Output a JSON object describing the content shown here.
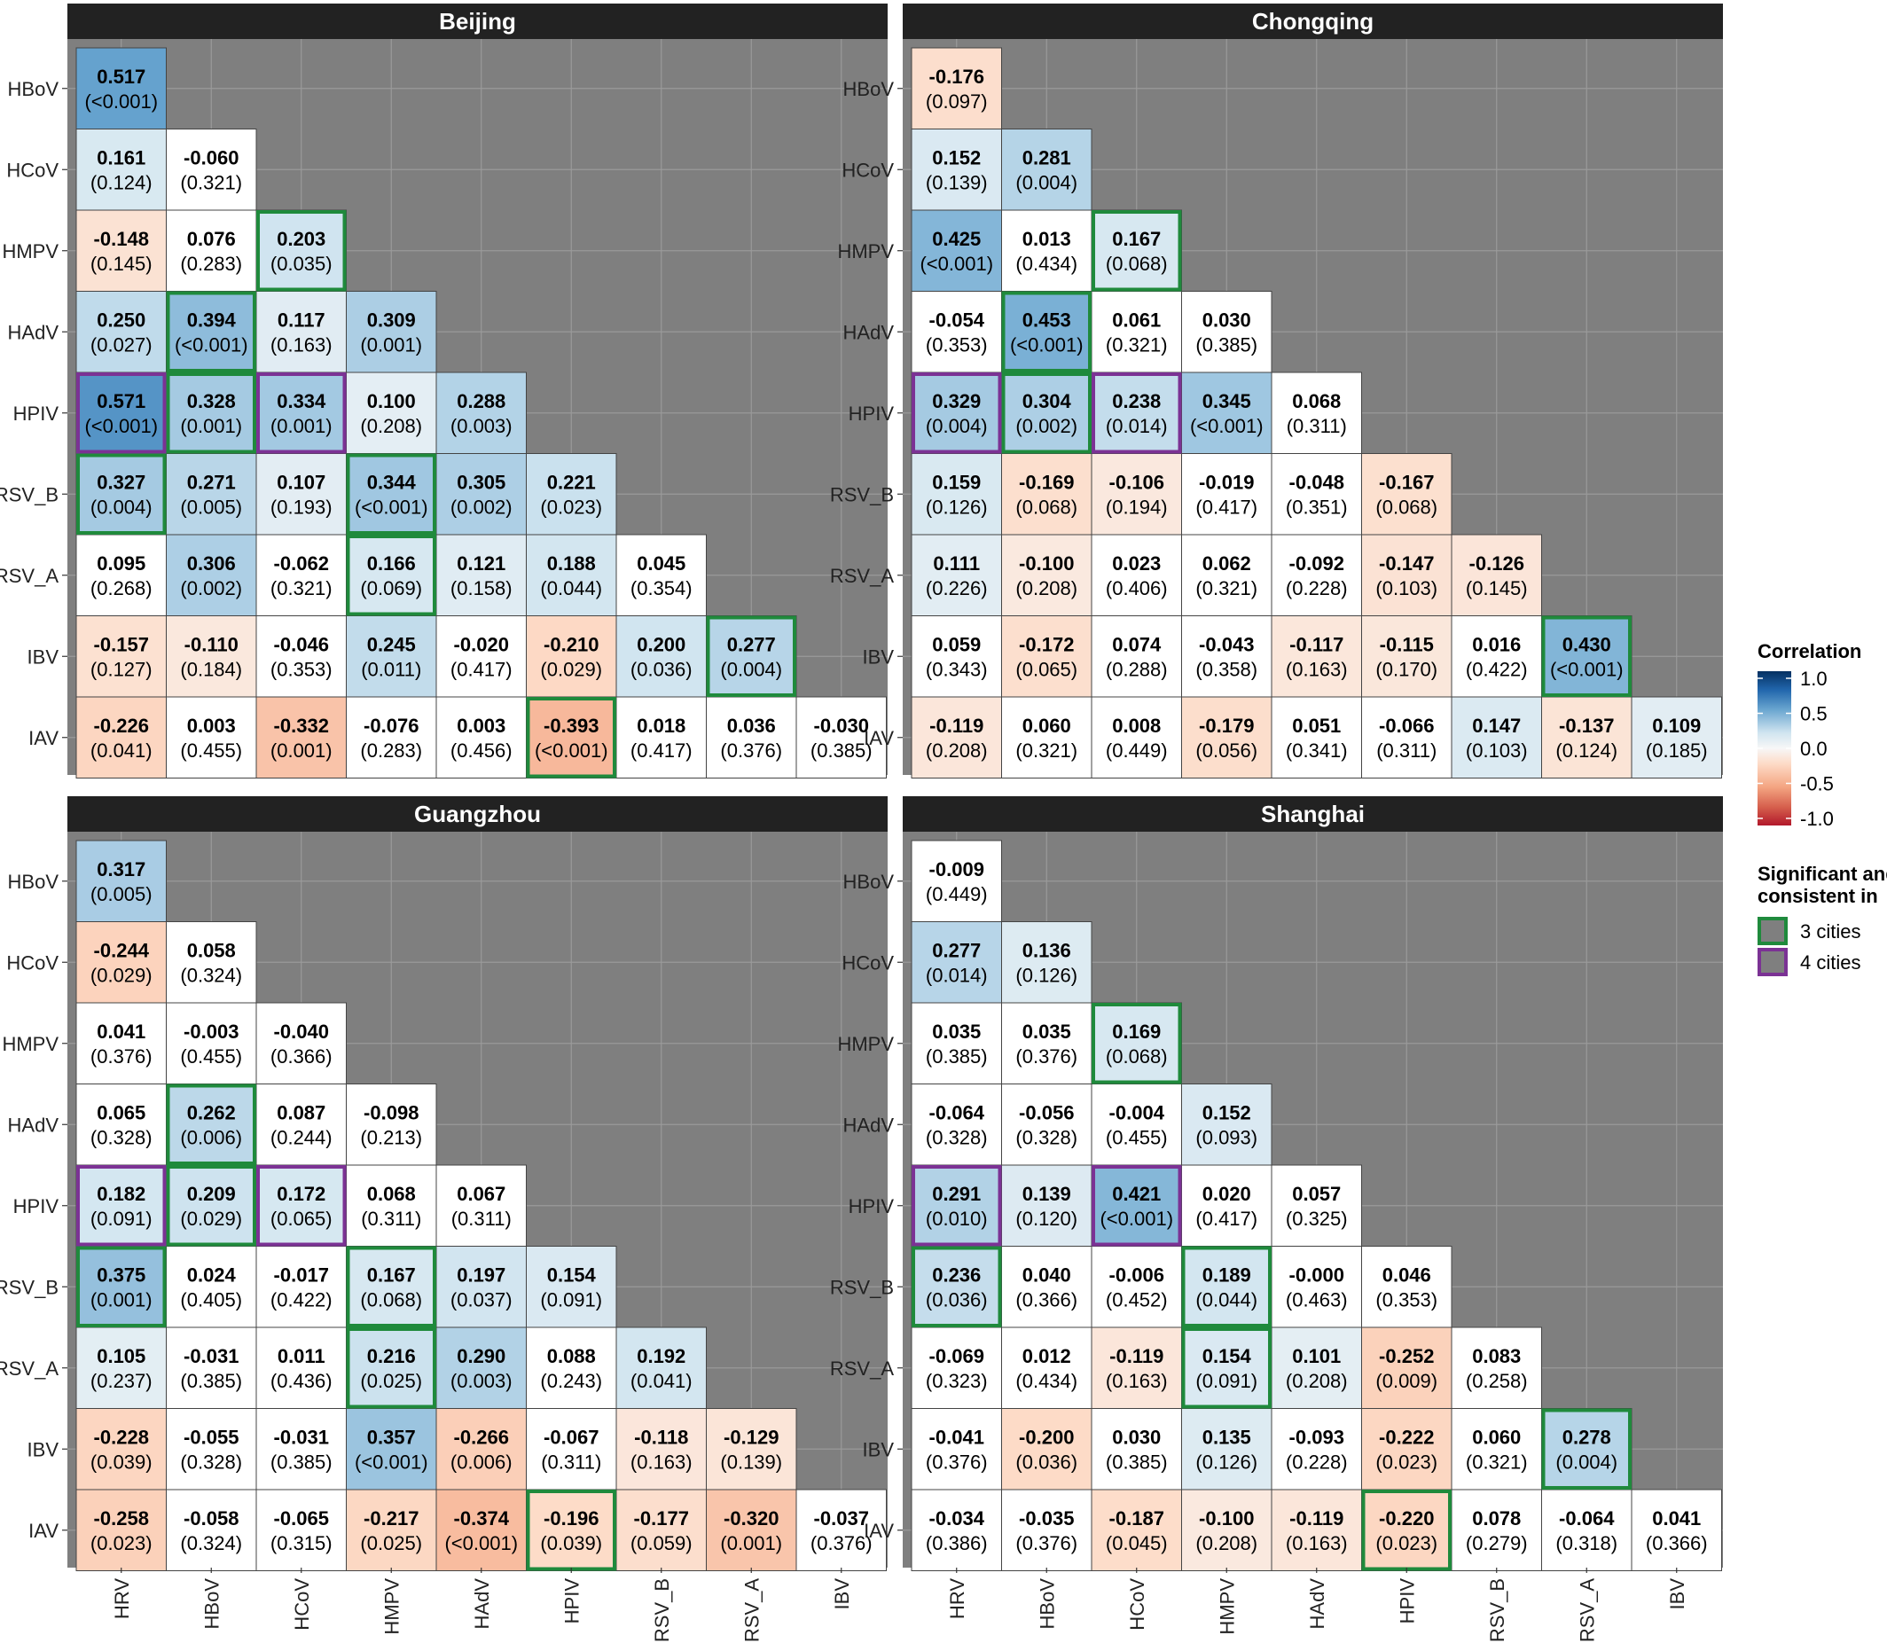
{
  "chart_data": {
    "type": "heatmap",
    "variables_x": [
      "HRV",
      "HBoV",
      "HCoV",
      "HMPV",
      "HAdV",
      "HPIV",
      "RSV_B",
      "RSV_A",
      "IBV"
    ],
    "variables_y": [
      "HBoV",
      "HCoV",
      "HMPV",
      "HAdV",
      "HPIV",
      "RSV_B",
      "RSV_A",
      "IBV",
      "IAV"
    ],
    "color_scale": {
      "min": -1.0,
      "max": 1.0,
      "low_color": "#b2182b",
      "mid_color": "#f7f7f7",
      "high_color": "#2166ac"
    },
    "panels": [
      {
        "city": "Beijing",
        "values": [
          [
            0.517
          ],
          [
            0.161,
            -0.06
          ],
          [
            -0.148,
            0.076,
            0.203
          ],
          [
            0.25,
            0.394,
            0.117,
            0.309
          ],
          [
            0.571,
            0.328,
            0.334,
            0.1,
            0.288
          ],
          [
            0.327,
            0.271,
            0.107,
            0.344,
            0.305,
            0.221
          ],
          [
            0.095,
            0.306,
            -0.062,
            0.166,
            0.121,
            0.188,
            0.045
          ],
          [
            -0.157,
            -0.11,
            -0.046,
            0.245,
            -0.02,
            -0.21,
            0.2,
            0.277
          ],
          [
            -0.226,
            0.003,
            -0.332,
            -0.076,
            0.003,
            -0.393,
            0.018,
            0.036,
            -0.03
          ]
        ],
        "values_text": [
          [
            "0.517"
          ],
          [
            "0.161",
            "-0.060"
          ],
          [
            "-0.148",
            "0.076",
            "0.203"
          ],
          [
            "0.250",
            "0.394",
            "0.117",
            "0.309"
          ],
          [
            "0.571",
            "0.328",
            "0.334",
            "0.100",
            "0.288"
          ],
          [
            "0.327",
            "0.271",
            "0.107",
            "0.344",
            "0.305",
            "0.221"
          ],
          [
            "0.095",
            "0.306",
            "-0.062",
            "0.166",
            "0.121",
            "0.188",
            "0.045"
          ],
          [
            "-0.157",
            "-0.110",
            "-0.046",
            "0.245",
            "-0.020",
            "-0.210",
            "0.200",
            "0.277"
          ],
          [
            "-0.226",
            "0.003",
            "-0.332",
            "-0.076",
            "0.003",
            "-0.393",
            "0.018",
            "0.036",
            "-0.030"
          ]
        ],
        "p_values": [
          [
            "(<0.001)"
          ],
          [
            "(0.124)",
            "(0.321)"
          ],
          [
            "(0.145)",
            "(0.283)",
            "(0.035)"
          ],
          [
            "(0.027)",
            "(<0.001)",
            "(0.163)",
            "(0.001)"
          ],
          [
            "(<0.001)",
            "(0.001)",
            "(0.001)",
            "(0.208)",
            "(0.003)"
          ],
          [
            "(0.004)",
            "(0.005)",
            "(0.193)",
            "(<0.001)",
            "(0.002)",
            "(0.023)"
          ],
          [
            "(0.268)",
            "(0.002)",
            "(0.321)",
            "(0.069)",
            "(0.158)",
            "(0.044)",
            "(0.354)"
          ],
          [
            "(0.127)",
            "(0.184)",
            "(0.353)",
            "(0.011)",
            "(0.417)",
            "(0.029)",
            "(0.036)",
            "(0.004)"
          ],
          [
            "(0.041)",
            "(0.455)",
            "(0.001)",
            "(0.283)",
            "(0.456)",
            "(<0.001)",
            "(0.417)",
            "(0.376)",
            "(0.385)"
          ]
        ],
        "highlights": [
          {
            "row": 2,
            "col": 2,
            "cities": 3
          },
          {
            "row": 3,
            "col": 1,
            "cities": 3
          },
          {
            "row": 4,
            "col": 0,
            "cities": 4
          },
          {
            "row": 4,
            "col": 1,
            "cities": 3
          },
          {
            "row": 4,
            "col": 2,
            "cities": 4
          },
          {
            "row": 5,
            "col": 0,
            "cities": 3
          },
          {
            "row": 5,
            "col": 3,
            "cities": 3
          },
          {
            "row": 6,
            "col": 3,
            "cities": 3
          },
          {
            "row": 7,
            "col": 7,
            "cities": 3
          },
          {
            "row": 8,
            "col": 5,
            "cities": 3
          }
        ]
      },
      {
        "city": "Chongqing",
        "values": [
          [
            -0.176
          ],
          [
            0.152,
            0.281
          ],
          [
            0.425,
            0.013,
            0.167
          ],
          [
            -0.054,
            0.453,
            0.061,
            0.03
          ],
          [
            0.329,
            0.304,
            0.238,
            0.345,
            0.068
          ],
          [
            0.159,
            -0.169,
            -0.106,
            -0.019,
            -0.048,
            -0.167
          ],
          [
            0.111,
            -0.1,
            0.023,
            0.062,
            -0.092,
            -0.147,
            -0.126
          ],
          [
            0.059,
            -0.172,
            0.074,
            -0.043,
            -0.117,
            -0.115,
            0.016,
            0.43
          ],
          [
            -0.119,
            0.06,
            0.008,
            -0.179,
            0.051,
            -0.066,
            0.147,
            -0.137,
            0.109
          ]
        ],
        "values_text": [
          [
            "-0.176"
          ],
          [
            "0.152",
            "0.281"
          ],
          [
            "0.425",
            "0.013",
            "0.167"
          ],
          [
            "-0.054",
            "0.453",
            "0.061",
            "0.030"
          ],
          [
            "0.329",
            "0.304",
            "0.238",
            "0.345",
            "0.068"
          ],
          [
            "0.159",
            "-0.169",
            "-0.106",
            "-0.019",
            "-0.048",
            "-0.167"
          ],
          [
            "0.111",
            "-0.100",
            "0.023",
            "0.062",
            "-0.092",
            "-0.147",
            "-0.126"
          ],
          [
            "0.059",
            "-0.172",
            "0.074",
            "-0.043",
            "-0.117",
            "-0.115",
            "0.016",
            "0.430"
          ],
          [
            "-0.119",
            "0.060",
            "0.008",
            "-0.179",
            "0.051",
            "-0.066",
            "0.147",
            "-0.137",
            "0.109"
          ]
        ],
        "p_values": [
          [
            "(0.097)"
          ],
          [
            "(0.139)",
            "(0.004)"
          ],
          [
            "(<0.001)",
            "(0.434)",
            "(0.068)"
          ],
          [
            "(0.353)",
            "(<0.001)",
            "(0.321)",
            "(0.385)"
          ],
          [
            "(0.004)",
            "(0.002)",
            "(0.014)",
            "(<0.001)",
            "(0.311)"
          ],
          [
            "(0.126)",
            "(0.068)",
            "(0.194)",
            "(0.417)",
            "(0.351)",
            "(0.068)"
          ],
          [
            "(0.226)",
            "(0.208)",
            "(0.406)",
            "(0.321)",
            "(0.228)",
            "(0.103)",
            "(0.145)"
          ],
          [
            "(0.343)",
            "(0.065)",
            "(0.288)",
            "(0.358)",
            "(0.163)",
            "(0.170)",
            "(0.422)",
            "(<0.001)"
          ],
          [
            "(0.208)",
            "(0.321)",
            "(0.449)",
            "(0.056)",
            "(0.341)",
            "(0.311)",
            "(0.103)",
            "(0.124)",
            "(0.185)"
          ]
        ],
        "highlights": [
          {
            "row": 2,
            "col": 2,
            "cities": 3
          },
          {
            "row": 3,
            "col": 1,
            "cities": 3
          },
          {
            "row": 4,
            "col": 0,
            "cities": 4
          },
          {
            "row": 4,
            "col": 1,
            "cities": 3
          },
          {
            "row": 4,
            "col": 2,
            "cities": 4
          },
          {
            "row": 7,
            "col": 7,
            "cities": 3
          }
        ]
      },
      {
        "city": "Guangzhou",
        "values": [
          [
            0.317
          ],
          [
            -0.244,
            0.058
          ],
          [
            0.041,
            -0.003,
            -0.04
          ],
          [
            0.065,
            0.262,
            0.087,
            -0.098
          ],
          [
            0.182,
            0.209,
            0.172,
            0.068,
            0.067
          ],
          [
            0.375,
            0.024,
            -0.017,
            0.167,
            0.197,
            0.154
          ],
          [
            0.105,
            -0.031,
            0.011,
            0.216,
            0.29,
            0.088,
            0.192
          ],
          [
            -0.228,
            -0.055,
            -0.031,
            0.357,
            -0.266,
            -0.067,
            -0.118,
            -0.129
          ],
          [
            -0.258,
            -0.058,
            -0.065,
            -0.217,
            -0.374,
            -0.196,
            -0.177,
            -0.32,
            -0.037
          ]
        ],
        "values_text": [
          [
            "0.317"
          ],
          [
            "-0.244",
            "0.058"
          ],
          [
            "0.041",
            "-0.003",
            "-0.040"
          ],
          [
            "0.065",
            "0.262",
            "0.087",
            "-0.098"
          ],
          [
            "0.182",
            "0.209",
            "0.172",
            "0.068",
            "0.067"
          ],
          [
            "0.375",
            "0.024",
            "-0.017",
            "0.167",
            "0.197",
            "0.154"
          ],
          [
            "0.105",
            "-0.031",
            "0.011",
            "0.216",
            "0.290",
            "0.088",
            "0.192"
          ],
          [
            "-0.228",
            "-0.055",
            "-0.031",
            "0.357",
            "-0.266",
            "-0.067",
            "-0.118",
            "-0.129"
          ],
          [
            "-0.258",
            "-0.058",
            "-0.065",
            "-0.217",
            "-0.374",
            "-0.196",
            "-0.177",
            "-0.320",
            "-0.037"
          ]
        ],
        "p_values": [
          [
            "(0.005)"
          ],
          [
            "(0.029)",
            "(0.324)"
          ],
          [
            "(0.376)",
            "(0.455)",
            "(0.366)"
          ],
          [
            "(0.328)",
            "(0.006)",
            "(0.244)",
            "(0.213)"
          ],
          [
            "(0.091)",
            "(0.029)",
            "(0.065)",
            "(0.311)",
            "(0.311)"
          ],
          [
            "(0.001)",
            "(0.405)",
            "(0.422)",
            "(0.068)",
            "(0.037)",
            "(0.091)"
          ],
          [
            "(0.237)",
            "(0.385)",
            "(0.436)",
            "(0.025)",
            "(0.003)",
            "(0.243)",
            "(0.041)"
          ],
          [
            "(0.039)",
            "(0.328)",
            "(0.385)",
            "(<0.001)",
            "(0.006)",
            "(0.311)",
            "(0.163)",
            "(0.139)"
          ],
          [
            "(0.023)",
            "(0.324)",
            "(0.315)",
            "(0.025)",
            "(<0.001)",
            "(0.039)",
            "(0.059)",
            "(0.001)",
            "(0.376)"
          ]
        ],
        "highlights": [
          {
            "row": 3,
            "col": 1,
            "cities": 3
          },
          {
            "row": 4,
            "col": 0,
            "cities": 4
          },
          {
            "row": 4,
            "col": 1,
            "cities": 3
          },
          {
            "row": 4,
            "col": 2,
            "cities": 4
          },
          {
            "row": 5,
            "col": 0,
            "cities": 3
          },
          {
            "row": 5,
            "col": 3,
            "cities": 3
          },
          {
            "row": 6,
            "col": 3,
            "cities": 3
          },
          {
            "row": 8,
            "col": 5,
            "cities": 3
          }
        ]
      },
      {
        "city": "Shanghai",
        "values": [
          [
            -0.009
          ],
          [
            0.277,
            0.136
          ],
          [
            0.035,
            0.035,
            0.169
          ],
          [
            -0.064,
            -0.056,
            -0.004,
            0.152
          ],
          [
            0.291,
            0.139,
            0.421,
            0.02,
            0.057
          ],
          [
            0.236,
            0.04,
            -0.006,
            0.189,
            -0.0,
            0.046
          ],
          [
            -0.069,
            0.012,
            -0.119,
            0.154,
            0.101,
            -0.252,
            0.083
          ],
          [
            -0.041,
            -0.2,
            0.03,
            0.135,
            -0.093,
            -0.222,
            0.06,
            0.278
          ],
          [
            -0.034,
            -0.035,
            -0.187,
            -0.1,
            -0.119,
            -0.22,
            0.078,
            -0.064,
            0.041
          ]
        ],
        "values_text": [
          [
            "-0.009"
          ],
          [
            "0.277",
            "0.136"
          ],
          [
            "0.035",
            "0.035",
            "0.169"
          ],
          [
            "-0.064",
            "-0.056",
            "-0.004",
            "0.152"
          ],
          [
            "0.291",
            "0.139",
            "0.421",
            "0.020",
            "0.057"
          ],
          [
            "0.236",
            "0.040",
            "-0.006",
            "0.189",
            "-0.000",
            "0.046"
          ],
          [
            "-0.069",
            "0.012",
            "-0.119",
            "0.154",
            "0.101",
            "-0.252",
            "0.083"
          ],
          [
            "-0.041",
            "-0.200",
            "0.030",
            "0.135",
            "-0.093",
            "-0.222",
            "0.060",
            "0.278"
          ],
          [
            "-0.034",
            "-0.035",
            "-0.187",
            "-0.100",
            "-0.119",
            "-0.220",
            "0.078",
            "-0.064",
            "0.041"
          ]
        ],
        "p_values": [
          [
            "(0.449)"
          ],
          [
            "(0.014)",
            "(0.126)"
          ],
          [
            "(0.385)",
            "(0.376)",
            "(0.068)"
          ],
          [
            "(0.328)",
            "(0.328)",
            "(0.455)",
            "(0.093)"
          ],
          [
            "(0.010)",
            "(0.120)",
            "(<0.001)",
            "(0.417)",
            "(0.325)"
          ],
          [
            "(0.036)",
            "(0.366)",
            "(0.452)",
            "(0.044)",
            "(0.463)",
            "(0.353)"
          ],
          [
            "(0.323)",
            "(0.434)",
            "(0.163)",
            "(0.091)",
            "(0.208)",
            "(0.009)",
            "(0.258)"
          ],
          [
            "(0.376)",
            "(0.036)",
            "(0.385)",
            "(0.126)",
            "(0.228)",
            "(0.023)",
            "(0.321)",
            "(0.004)"
          ],
          [
            "(0.386)",
            "(0.376)",
            "(0.045)",
            "(0.208)",
            "(0.163)",
            "(0.023)",
            "(0.279)",
            "(0.318)",
            "(0.366)"
          ]
        ],
        "highlights": [
          {
            "row": 2,
            "col": 2,
            "cities": 3
          },
          {
            "row": 4,
            "col": 0,
            "cities": 4
          },
          {
            "row": 4,
            "col": 2,
            "cities": 4
          },
          {
            "row": 5,
            "col": 0,
            "cities": 3
          },
          {
            "row": 5,
            "col": 3,
            "cities": 3
          },
          {
            "row": 6,
            "col": 3,
            "cities": 3
          },
          {
            "row": 7,
            "col": 7,
            "cities": 3
          },
          {
            "row": 8,
            "col": 5,
            "cities": 3
          }
        ]
      }
    ],
    "legend": {
      "color_title": "Correlation",
      "color_ticks": [
        "1.0",
        "0.5",
        "0.0",
        "-0.5",
        "-1.0"
      ],
      "highlight_title_line1": "Significant and",
      "highlight_title_line2": "consistent in",
      "highlight_items": [
        {
          "label": "3 cities",
          "color": "#1f8a3c"
        },
        {
          "label": "4 cities",
          "color": "#7b3294"
        }
      ]
    }
  }
}
